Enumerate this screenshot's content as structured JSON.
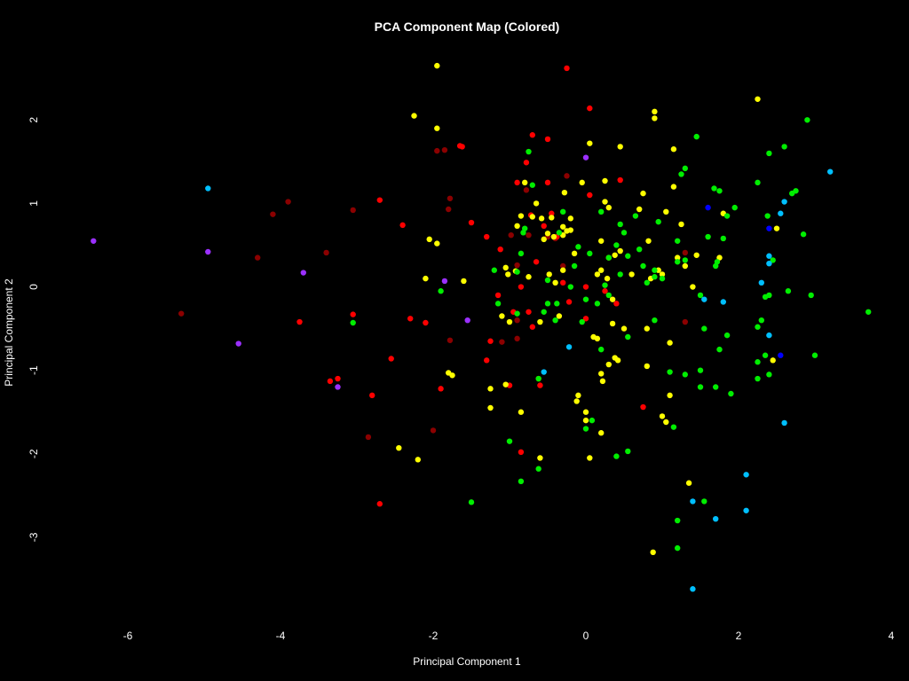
{
  "chart_data": {
    "type": "scatter",
    "title": "PCA Component Map (Colored)",
    "xlabel": "Principal Component 1",
    "ylabel": "Principal Component 2",
    "xlim": [
      -7.0,
      4.0
    ],
    "ylim": [
      -4.0,
      2.8
    ],
    "xticks": [
      -6,
      -4,
      -2,
      0,
      2,
      4
    ],
    "yticks": [
      -3,
      -2,
      -1,
      0,
      1,
      2
    ],
    "grid": false,
    "background": "#000000",
    "series": [
      {
        "color": "#8B0000",
        "points": [
          [
            -5.3,
            -0.32
          ],
          [
            -4.3,
            0.35
          ],
          [
            -4.1,
            0.87
          ],
          [
            -3.9,
            1.02
          ],
          [
            -3.4,
            0.41
          ],
          [
            -3.05,
            0.92
          ],
          [
            -2.85,
            -1.8
          ],
          [
            -2.0,
            -1.72
          ],
          [
            -1.95,
            1.63
          ],
          [
            -1.85,
            1.64
          ],
          [
            -1.8,
            0.93
          ],
          [
            -1.78,
            1.06
          ],
          [
            -1.78,
            -0.64
          ],
          [
            -1.1,
            -0.66
          ],
          [
            -0.9,
            -0.62
          ],
          [
            -0.98,
            0.62
          ],
          [
            -0.9,
            -0.4
          ],
          [
            -0.75,
            0.62
          ],
          [
            -0.5,
            0.6
          ],
          [
            -0.4,
            0.58
          ],
          [
            -0.3,
            0.25
          ],
          [
            -0.25,
            1.33
          ],
          [
            1.3,
            0.41
          ],
          [
            1.3,
            -0.42
          ],
          [
            -0.78,
            1.16
          ],
          [
            -0.9,
            0.26
          ]
        ]
      },
      {
        "color": "#FF0000",
        "points": [
          [
            -0.25,
            2.62
          ],
          [
            0.05,
            2.14
          ],
          [
            -2.7,
            1.04
          ],
          [
            -2.4,
            0.74
          ],
          [
            -3.75,
            -0.42
          ],
          [
            -3.35,
            -1.13
          ],
          [
            -3.25,
            -1.1
          ],
          [
            -3.05,
            -0.33
          ],
          [
            -2.8,
            -1.3
          ],
          [
            -2.55,
            -0.86
          ],
          [
            -2.3,
            -0.38
          ],
          [
            -2.1,
            -0.43
          ],
          [
            -1.9,
            -1.22
          ],
          [
            -1.65,
            1.69
          ],
          [
            -1.62,
            1.68
          ],
          [
            -1.5,
            0.77
          ],
          [
            -1.3,
            -0.88
          ],
          [
            -1.3,
            0.6
          ],
          [
            -1.25,
            -0.65
          ],
          [
            -1.15,
            -0.1
          ],
          [
            -1.12,
            0.45
          ],
          [
            -1.0,
            -1.18
          ],
          [
            -0.95,
            -0.3
          ],
          [
            -0.9,
            1.25
          ],
          [
            -0.85,
            -1.98
          ],
          [
            -0.78,
            1.49
          ],
          [
            -0.7,
            1.82
          ],
          [
            -0.72,
            0.86
          ],
          [
            -0.75,
            -0.3
          ],
          [
            -0.7,
            -0.48
          ],
          [
            -0.65,
            0.3
          ],
          [
            -0.62,
            -1.1
          ],
          [
            -0.55,
            0.73
          ],
          [
            -0.5,
            1.25
          ],
          [
            -0.5,
            1.77
          ],
          [
            -0.45,
            0.88
          ],
          [
            -0.38,
            0.6
          ],
          [
            -0.3,
            0.05
          ],
          [
            -0.22,
            -0.18
          ],
          [
            0.0,
            0.0
          ],
          [
            0.0,
            -0.38
          ],
          [
            0.05,
            1.1
          ],
          [
            0.25,
            -0.05
          ],
          [
            0.4,
            -0.2
          ],
          [
            0.45,
            1.28
          ],
          [
            0.75,
            -1.44
          ],
          [
            -2.7,
            -2.6
          ],
          [
            -0.6,
            -1.18
          ],
          [
            -0.85,
            0.0
          ]
        ]
      },
      {
        "color": "#FFFF00",
        "points": [
          [
            -1.95,
            2.65
          ],
          [
            -1.95,
            1.9
          ],
          [
            -2.25,
            2.05
          ],
          [
            -2.05,
            0.57
          ],
          [
            -1.95,
            0.52
          ],
          [
            -2.1,
            0.1
          ],
          [
            -2.45,
            -1.93
          ],
          [
            -2.2,
            -2.07
          ],
          [
            -1.8,
            -1.03
          ],
          [
            -1.75,
            -1.06
          ],
          [
            -1.6,
            0.07
          ],
          [
            -1.25,
            -1.22
          ],
          [
            -1.25,
            -1.45
          ],
          [
            -1.1,
            -0.35
          ],
          [
            -1.05,
            -1.17
          ],
          [
            -1.05,
            0.23
          ],
          [
            -1.02,
            0.15
          ],
          [
            -1.0,
            -0.42
          ],
          [
            -0.92,
            0.19
          ],
          [
            -0.9,
            0.73
          ],
          [
            -0.85,
            0.85
          ],
          [
            -0.85,
            -1.5
          ],
          [
            -0.8,
            1.25
          ],
          [
            -0.75,
            0.12
          ],
          [
            -0.7,
            0.84
          ],
          [
            -0.65,
            1.0
          ],
          [
            -0.6,
            -0.42
          ],
          [
            -0.6,
            -2.05
          ],
          [
            -0.58,
            0.82
          ],
          [
            -0.55,
            0.57
          ],
          [
            -0.5,
            0.64
          ],
          [
            -0.48,
            0.15
          ],
          [
            -0.45,
            0.83
          ],
          [
            -0.42,
            0.6
          ],
          [
            -0.4,
            0.05
          ],
          [
            -0.35,
            -0.35
          ],
          [
            -0.3,
            0.62
          ],
          [
            -0.3,
            0.72
          ],
          [
            -0.28,
            1.13
          ],
          [
            -0.25,
            0.67
          ],
          [
            -0.2,
            0.68
          ],
          [
            -0.2,
            0.82
          ],
          [
            -0.15,
            0.4
          ],
          [
            -0.12,
            -1.37
          ],
          [
            -0.1,
            -1.3
          ],
          [
            -0.05,
            1.25
          ],
          [
            0.0,
            -1.5
          ],
          [
            0.0,
            -1.6
          ],
          [
            0.05,
            1.72
          ],
          [
            0.05,
            -2.05
          ],
          [
            0.1,
            -0.6
          ],
          [
            0.15,
            -0.62
          ],
          [
            0.15,
            0.15
          ],
          [
            0.2,
            0.55
          ],
          [
            0.2,
            0.2
          ],
          [
            0.2,
            -1.75
          ],
          [
            0.2,
            -1.04
          ],
          [
            0.22,
            -1.13
          ],
          [
            0.25,
            1.27
          ],
          [
            0.25,
            1.02
          ],
          [
            0.28,
            0.1
          ],
          [
            0.3,
            0.35
          ],
          [
            0.3,
            -0.93
          ],
          [
            0.35,
            -0.15
          ],
          [
            0.35,
            -0.44
          ],
          [
            0.38,
            0.38
          ],
          [
            0.38,
            -0.85
          ],
          [
            0.42,
            -0.88
          ],
          [
            0.45,
            1.68
          ],
          [
            0.45,
            0.43
          ],
          [
            0.5,
            -0.5
          ],
          [
            0.6,
            0.15
          ],
          [
            0.7,
            0.93
          ],
          [
            0.75,
            1.12
          ],
          [
            0.8,
            -0.5
          ],
          [
            0.8,
            -0.95
          ],
          [
            0.82,
            0.55
          ],
          [
            0.85,
            0.1
          ],
          [
            0.9,
            2.1
          ],
          [
            0.9,
            2.02
          ],
          [
            0.95,
            0.2
          ],
          [
            1.0,
            0.15
          ],
          [
            1.0,
            -1.55
          ],
          [
            1.05,
            0.9
          ],
          [
            1.05,
            -1.62
          ],
          [
            1.1,
            -0.67
          ],
          [
            1.1,
            -1.3
          ],
          [
            1.15,
            1.2
          ],
          [
            1.15,
            1.65
          ],
          [
            1.2,
            0.35
          ],
          [
            1.25,
            0.75
          ],
          [
            1.3,
            0.25
          ],
          [
            1.35,
            -2.35
          ],
          [
            1.4,
            0.0
          ],
          [
            1.45,
            0.38
          ],
          [
            1.8,
            0.88
          ],
          [
            2.25,
            2.25
          ],
          [
            2.5,
            0.7
          ],
          [
            2.45,
            -0.88
          ],
          [
            0.88,
            -3.18
          ],
          [
            1.75,
            0.35
          ],
          [
            0.3,
            0.95
          ],
          [
            -0.3,
            0.2
          ]
        ]
      },
      {
        "color": "#00EE00",
        "points": [
          [
            2.9,
            2.0
          ],
          [
            2.6,
            1.68
          ],
          [
            2.4,
            1.6
          ],
          [
            2.7,
            1.12
          ],
          [
            2.75,
            1.15
          ],
          [
            2.25,
            1.25
          ],
          [
            1.45,
            1.8
          ],
          [
            1.3,
            1.42
          ],
          [
            1.25,
            1.35
          ],
          [
            1.68,
            1.18
          ],
          [
            1.75,
            1.15
          ],
          [
            1.85,
            0.85
          ],
          [
            1.95,
            0.95
          ],
          [
            1.6,
            0.6
          ],
          [
            1.8,
            0.58
          ],
          [
            1.72,
            0.3
          ],
          [
            1.7,
            0.25
          ],
          [
            1.3,
            0.32
          ],
          [
            1.2,
            0.55
          ],
          [
            1.2,
            0.3
          ],
          [
            1.0,
            0.1
          ],
          [
            0.95,
            0.78
          ],
          [
            0.9,
            0.2
          ],
          [
            0.9,
            0.12
          ],
          [
            0.9,
            -0.4
          ],
          [
            0.8,
            0.05
          ],
          [
            0.75,
            0.25
          ],
          [
            0.7,
            0.45
          ],
          [
            0.65,
            0.85
          ],
          [
            0.55,
            0.37
          ],
          [
            0.55,
            -0.6
          ],
          [
            0.5,
            0.65
          ],
          [
            0.45,
            0.75
          ],
          [
            0.45,
            0.15
          ],
          [
            0.4,
            0.5
          ],
          [
            0.3,
            0.35
          ],
          [
            0.3,
            -0.1
          ],
          [
            0.25,
            0.02
          ],
          [
            0.2,
            0.9
          ],
          [
            0.2,
            -0.75
          ],
          [
            0.15,
            -0.2
          ],
          [
            0.05,
            0.4
          ],
          [
            0.0,
            -0.15
          ],
          [
            0.0,
            -1.7
          ],
          [
            -0.05,
            -0.42
          ],
          [
            -0.1,
            0.48
          ],
          [
            -0.15,
            0.25
          ],
          [
            -0.2,
            0.0
          ],
          [
            -0.3,
            0.9
          ],
          [
            -0.35,
            0.65
          ],
          [
            -0.38,
            -0.2
          ],
          [
            -0.4,
            -0.4
          ],
          [
            -0.5,
            -0.2
          ],
          [
            -0.5,
            0.08
          ],
          [
            -0.55,
            -0.3
          ],
          [
            -0.62,
            -1.1
          ],
          [
            -0.62,
            -2.18
          ],
          [
            -0.7,
            1.22
          ],
          [
            -0.75,
            1.62
          ],
          [
            -0.8,
            0.7
          ],
          [
            -0.82,
            0.65
          ],
          [
            -0.85,
            0.4
          ],
          [
            -0.9,
            0.18
          ],
          [
            -0.9,
            -0.32
          ],
          [
            -1.0,
            -1.85
          ],
          [
            -1.15,
            -0.2
          ],
          [
            -1.2,
            0.2
          ],
          [
            -1.5,
            -2.58
          ],
          [
            -0.85,
            -2.33
          ],
          [
            -1.9,
            -0.05
          ],
          [
            -3.05,
            -0.43
          ],
          [
            0.08,
            -1.6
          ],
          [
            0.55,
            -1.97
          ],
          [
            0.4,
            -2.03
          ],
          [
            1.15,
            -1.68
          ],
          [
            1.2,
            -2.8
          ],
          [
            1.2,
            -3.13
          ],
          [
            1.55,
            -2.57
          ],
          [
            1.55,
            -0.5
          ],
          [
            1.5,
            -1.0
          ],
          [
            1.5,
            -1.2
          ],
          [
            1.3,
            -1.05
          ],
          [
            1.1,
            -1.02
          ],
          [
            1.75,
            -0.75
          ],
          [
            1.7,
            -1.2
          ],
          [
            1.85,
            -0.58
          ],
          [
            1.9,
            -1.28
          ],
          [
            2.25,
            -0.48
          ],
          [
            2.25,
            -0.9
          ],
          [
            2.25,
            -1.1
          ],
          [
            2.3,
            -0.4
          ],
          [
            2.35,
            -0.12
          ],
          [
            2.35,
            -0.82
          ],
          [
            2.4,
            -1.05
          ],
          [
            2.38,
            0.85
          ],
          [
            2.45,
            0.32
          ],
          [
            2.65,
            -0.05
          ],
          [
            2.85,
            0.63
          ],
          [
            3.0,
            -0.82
          ],
          [
            3.7,
            -0.3
          ],
          [
            2.95,
            -0.1
          ],
          [
            2.4,
            -0.1
          ],
          [
            1.5,
            -0.1
          ]
        ]
      },
      {
        "color": "#00BFFF",
        "points": [
          [
            -4.95,
            1.18
          ],
          [
            3.2,
            1.38
          ],
          [
            2.6,
            1.02
          ],
          [
            2.55,
            0.88
          ],
          [
            2.4,
            0.37
          ],
          [
            2.4,
            0.28
          ],
          [
            2.3,
            0.05
          ],
          [
            2.4,
            -0.58
          ],
          [
            2.6,
            -1.63
          ],
          [
            1.8,
            -0.18
          ],
          [
            1.55,
            -0.15
          ],
          [
            -0.55,
            -1.02
          ],
          [
            -0.22,
            -0.72
          ],
          [
            2.1,
            -2.25
          ],
          [
            2.1,
            -2.68
          ],
          [
            1.7,
            -2.78
          ],
          [
            1.4,
            -2.57
          ],
          [
            1.4,
            -3.62
          ]
        ]
      },
      {
        "color": "#0000FF",
        "points": [
          [
            1.6,
            0.95
          ],
          [
            2.4,
            0.7
          ],
          [
            2.55,
            -0.82
          ]
        ]
      },
      {
        "color": "#9B30FF",
        "points": [
          [
            -6.45,
            0.55
          ],
          [
            -4.95,
            0.42
          ],
          [
            -4.55,
            -0.68
          ],
          [
            -3.7,
            0.17
          ],
          [
            -3.25,
            -1.2
          ],
          [
            -1.85,
            0.07
          ],
          [
            -1.55,
            -0.4
          ],
          [
            0.0,
            1.55
          ]
        ]
      }
    ]
  }
}
